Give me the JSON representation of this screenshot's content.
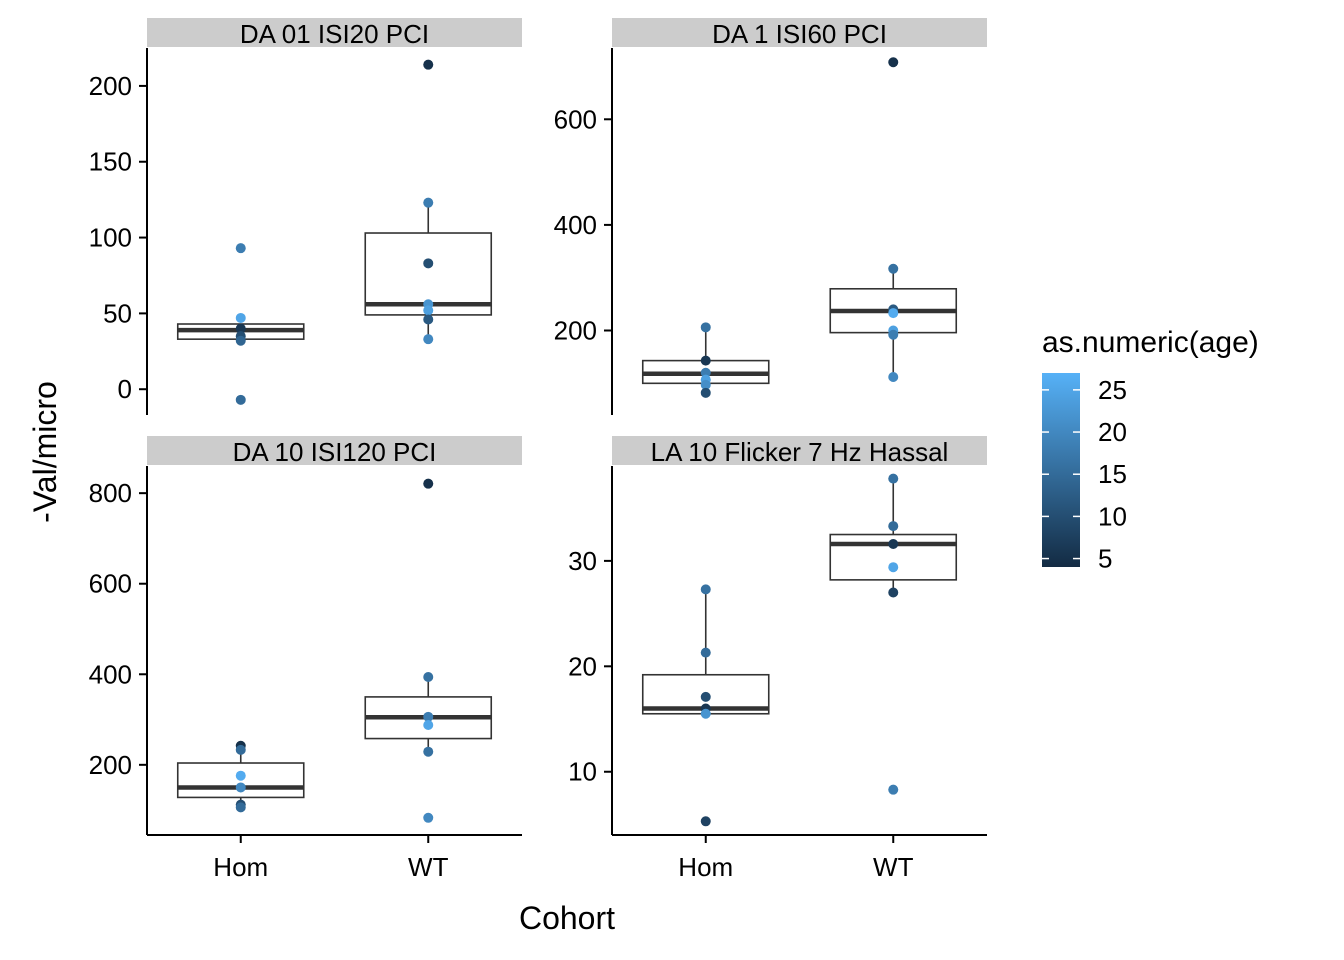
{
  "colors": {
    "strip_bg": "#cccccc",
    "box_line": "#333333",
    "axis_line": "#000000",
    "age_low": "#132b43",
    "age_high": "#56b1f7"
  },
  "legend": {
    "title": "as.numeric(age)",
    "breaks": [
      5,
      10,
      15,
      20,
      25
    ],
    "range": [
      4,
      27
    ]
  },
  "chart_data": {
    "type": "box",
    "xlabel": "Cohort",
    "ylabel": "-Val/micro",
    "categories": [
      "Hom",
      "WT"
    ],
    "facets": [
      {
        "title": "DA 01 ISI20 PCI",
        "ylim": [
          -17,
          225
        ],
        "yticks": [
          0,
          50,
          100,
          150,
          200
        ],
        "boxes": [
          {
            "cohort": "Hom",
            "whisker_low": 32,
            "q1": 33,
            "median": 39,
            "q3": 43,
            "whisker_high": 43
          },
          {
            "cohort": "WT",
            "whisker_low": 33,
            "q1": 49,
            "median": 56,
            "q3": 103,
            "whisker_high": 123
          }
        ],
        "points": [
          {
            "cohort": "Hom",
            "y": 93,
            "age": 18
          },
          {
            "cohort": "Hom",
            "y": 47,
            "age": 25
          },
          {
            "cohort": "Hom",
            "y": 40,
            "age": 6
          },
          {
            "cohort": "Hom",
            "y": 35,
            "age": 10
          },
          {
            "cohort": "Hom",
            "y": 32,
            "age": 14
          },
          {
            "cohort": "Hom",
            "y": -7,
            "age": 15
          },
          {
            "cohort": "WT",
            "y": 214,
            "age": 5
          },
          {
            "cohort": "WT",
            "y": 123,
            "age": 18
          },
          {
            "cohort": "WT",
            "y": 83,
            "age": 10
          },
          {
            "cohort": "WT",
            "y": 56,
            "age": 22
          },
          {
            "cohort": "WT",
            "y": 52,
            "age": 24
          },
          {
            "cohort": "WT",
            "y": 46,
            "age": 12
          },
          {
            "cohort": "WT",
            "y": 33,
            "age": 20
          }
        ]
      },
      {
        "title": "DA 1 ISI60 PCI",
        "ylim": [
          40,
          735
        ],
        "yticks": [
          200,
          400,
          600
        ],
        "boxes": [
          {
            "cohort": "Hom",
            "whisker_low": 82,
            "q1": 100,
            "median": 118,
            "q3": 143,
            "whisker_high": 206
          },
          {
            "cohort": "WT",
            "whisker_low": 112,
            "q1": 196,
            "median": 237,
            "q3": 279,
            "whisker_high": 317
          }
        ],
        "points": [
          {
            "cohort": "Hom",
            "y": 206,
            "age": 16
          },
          {
            "cohort": "Hom",
            "y": 143,
            "age": 6
          },
          {
            "cohort": "Hom",
            "y": 120,
            "age": 18
          },
          {
            "cohort": "Hom",
            "y": 107,
            "age": 24
          },
          {
            "cohort": "Hom",
            "y": 97,
            "age": 21
          },
          {
            "cohort": "Hom",
            "y": 82,
            "age": 10
          },
          {
            "cohort": "WT",
            "y": 708,
            "age": 5
          },
          {
            "cohort": "WT",
            "y": 317,
            "age": 16
          },
          {
            "cohort": "WT",
            "y": 240,
            "age": 12
          },
          {
            "cohort": "WT",
            "y": 233,
            "age": 26
          },
          {
            "cohort": "WT",
            "y": 200,
            "age": 24
          },
          {
            "cohort": "WT",
            "y": 192,
            "age": 18
          },
          {
            "cohort": "WT",
            "y": 112,
            "age": 20
          }
        ]
      },
      {
        "title": "DA 10 ISI120 PCI",
        "ylim": [
          45,
          860
        ],
        "yticks": [
          200,
          400,
          600,
          800
        ],
        "boxes": [
          {
            "cohort": "Hom",
            "whisker_low": 108,
            "q1": 128,
            "median": 150,
            "q3": 204,
            "whisker_high": 242
          },
          {
            "cohort": "WT",
            "whisker_low": 229,
            "q1": 258,
            "median": 305,
            "q3": 350,
            "whisker_high": 394
          }
        ],
        "points": [
          {
            "cohort": "Hom",
            "y": 242,
            "age": 5
          },
          {
            "cohort": "Hom",
            "y": 233,
            "age": 15
          },
          {
            "cohort": "Hom",
            "y": 176,
            "age": 26
          },
          {
            "cohort": "Hom",
            "y": 150,
            "age": 20
          },
          {
            "cohort": "Hom",
            "y": 112,
            "age": 10
          },
          {
            "cohort": "Hom",
            "y": 106,
            "age": 15
          },
          {
            "cohort": "WT",
            "y": 821,
            "age": 5
          },
          {
            "cohort": "WT",
            "y": 394,
            "age": 16
          },
          {
            "cohort": "WT",
            "y": 306,
            "age": 18
          },
          {
            "cohort": "WT",
            "y": 288,
            "age": 25
          },
          {
            "cohort": "WT",
            "y": 229,
            "age": 16
          },
          {
            "cohort": "WT",
            "y": 83,
            "age": 20
          }
        ]
      },
      {
        "title": "LA 10 Flicker 7 Hz Hassal",
        "ylim": [
          4,
          39
        ],
        "yticks": [
          10,
          20,
          30
        ],
        "boxes": [
          {
            "cohort": "Hom",
            "whisker_low": 15.5,
            "q1": 15.5,
            "median": 16,
            "q3": 19.2,
            "whisker_high": 27.3
          },
          {
            "cohort": "WT",
            "whisker_low": 27,
            "q1": 28.2,
            "median": 31.6,
            "q3": 32.5,
            "whisker_high": 37.8
          }
        ],
        "points": [
          {
            "cohort": "Hom",
            "y": 27.3,
            "age": 16
          },
          {
            "cohort": "Hom",
            "y": 21.3,
            "age": 15
          },
          {
            "cohort": "Hom",
            "y": 17.1,
            "age": 10
          },
          {
            "cohort": "Hom",
            "y": 16,
            "age": 6
          },
          {
            "cohort": "Hom",
            "y": 15.5,
            "age": 22
          },
          {
            "cohort": "Hom",
            "y": 5.3,
            "age": 8
          },
          {
            "cohort": "WT",
            "y": 37.8,
            "age": 16
          },
          {
            "cohort": "WT",
            "y": 33.3,
            "age": 15
          },
          {
            "cohort": "WT",
            "y": 31.6,
            "age": 6
          },
          {
            "cohort": "WT",
            "y": 29.4,
            "age": 25
          },
          {
            "cohort": "WT",
            "y": 27,
            "age": 8
          },
          {
            "cohort": "WT",
            "y": 8.3,
            "age": 18
          }
        ]
      }
    ]
  }
}
